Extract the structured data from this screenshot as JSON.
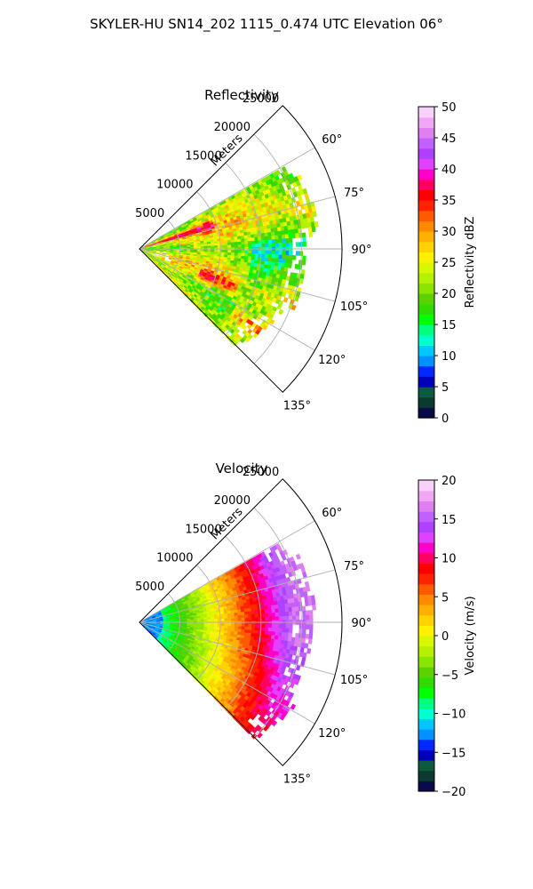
{
  "suptitle": "SKYLER-HU  SN14_202  1115_0.474 UTC Elevation 06°",
  "chart_data": [
    {
      "type": "heatmap",
      "projection": "polar-sector",
      "title": "Reflectivity",
      "radial_axis_label": "Meters",
      "r_ticks": [
        5000,
        10000,
        15000,
        20000,
        25000
      ],
      "r_tick_labels": [
        "5000",
        "10000",
        "15000",
        "20000",
        "25000"
      ],
      "r_max_m": 25000,
      "azimuth_range_deg": [
        45,
        135
      ],
      "azimuth_ticks": [
        60,
        75,
        90,
        105,
        120,
        135
      ],
      "azimuth_tick_labels": [
        "60°",
        "75°",
        "90°",
        "105°",
        "120°",
        "135°"
      ],
      "grid": true,
      "colorbar": {
        "label": "Reflectivity dBZ",
        "range": [
          0,
          50
        ],
        "ticks": [
          0,
          5,
          10,
          15,
          20,
          25,
          30,
          35,
          40,
          45,
          50
        ],
        "tick_labels": [
          "0",
          "5",
          "10",
          "15",
          "20",
          "25",
          "30",
          "35",
          "40",
          "45",
          "50"
        ],
        "colors": [
          "#0a0a4a",
          "#0b3a2e",
          "#0d5a40",
          "#0000b8",
          "#0028ff",
          "#0090ff",
          "#00c8ff",
          "#00ffd0",
          "#00ff80",
          "#00ff00",
          "#30dc00",
          "#5ad200",
          "#8ae600",
          "#b4f000",
          "#d8f800",
          "#fff200",
          "#ffd200",
          "#ffb000",
          "#ff8a00",
          "#ff5a00",
          "#ff2200",
          "#ff0000",
          "#ff0060",
          "#ff00c8",
          "#e040ff",
          "#b040ff",
          "#c060ff",
          "#e080f0",
          "#f0a8f4",
          "#f8d0fa"
        ]
      },
      "field_summary": {
        "dominant_range_dbz": [
          20,
          32
        ],
        "max_dbz_approx": 42,
        "high_echo_bands": [
          {
            "azimuth_deg": 72,
            "r_start_m": 0,
            "r_end_m": 9500,
            "dbz": 36
          },
          {
            "azimuth_deg": 112,
            "r_start_m": 8000,
            "r_end_m": 13000,
            "dbz": 35
          },
          {
            "azimuth_deg": 124,
            "r_start_m": 14000,
            "r_end_m": 21000,
            "dbz": 34
          }
        ]
      }
    },
    {
      "type": "heatmap",
      "projection": "polar-sector",
      "title": "Velocity",
      "radial_axis_label": "Meters",
      "r_ticks": [
        5000,
        10000,
        15000,
        20000,
        25000
      ],
      "r_tick_labels": [
        "5000",
        "10000",
        "15000",
        "20000",
        "25000"
      ],
      "r_max_m": 25000,
      "azimuth_range_deg": [
        45,
        135
      ],
      "azimuth_ticks": [
        60,
        75,
        90,
        105,
        120,
        135
      ],
      "azimuth_tick_labels": [
        "60°",
        "75°",
        "90°",
        "105°",
        "120°",
        "135°"
      ],
      "grid": true,
      "colorbar": {
        "label": "Velocity (m/s)",
        "range": [
          -20,
          20
        ],
        "ticks": [
          -20,
          -15,
          -10,
          -5,
          0,
          5,
          10,
          15,
          20
        ],
        "tick_labels": [
          "−20",
          "−15",
          "−10",
          "−5",
          "0",
          "5",
          "10",
          "15",
          "20"
        ],
        "colors": [
          "#0a0a4a",
          "#0b3a2e",
          "#0d5a40",
          "#0000b8",
          "#0028ff",
          "#0090ff",
          "#00c8ff",
          "#00ffd0",
          "#00ff80",
          "#00ff00",
          "#30dc00",
          "#5ad200",
          "#8ae600",
          "#b4f000",
          "#d8f800",
          "#fff200",
          "#ffd200",
          "#ffb000",
          "#ff8a00",
          "#ff5a00",
          "#ff2200",
          "#ff0000",
          "#ff0060",
          "#ff00c8",
          "#e040ff",
          "#b040ff",
          "#c060ff",
          "#e080f0",
          "#f0a8f4",
          "#f8d0fa"
        ]
      },
      "field_summary": {
        "near_radar_velocity_ms": -12,
        "far_range_velocity_ms": 16,
        "gradient": "velocity increases with range; near-radar values −12 m/s, outer northern part +15 to +17 m/s, outer southern part +5 to +11 m/s"
      }
    }
  ]
}
